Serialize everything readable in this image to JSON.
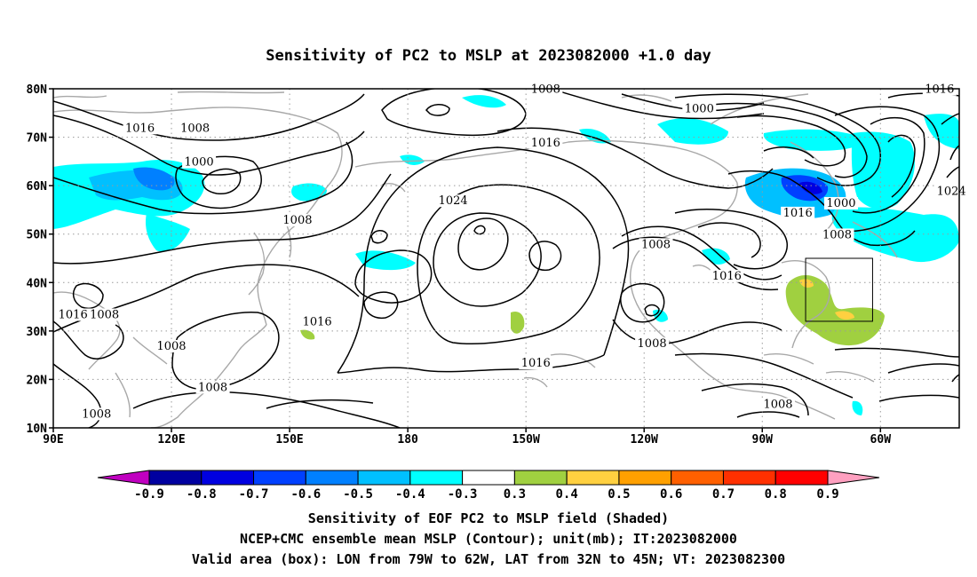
{
  "title": "Sensitivity of PC2 to MSLP at 2023082000 +1.0 day",
  "map": {
    "lat_labels": [
      "80N",
      "70N",
      "60N",
      "50N",
      "40N",
      "30N",
      "20N",
      "10N"
    ],
    "lat_values": [
      80,
      70,
      60,
      50,
      40,
      30,
      20,
      10
    ],
    "lon_labels": [
      "90E",
      "120E",
      "150E",
      "180",
      "150W",
      "120W",
      "90W",
      "60W"
    ],
    "lon_values": [
      90,
      120,
      150,
      180,
      210,
      240,
      270,
      300
    ],
    "lon_range": [
      90,
      320
    ],
    "lat_range": [
      10,
      80
    ],
    "grid": "dotted",
    "contour_labels": [
      {
        "text": "1008",
        "lon": 126,
        "lat": 71.5
      },
      {
        "text": "1016",
        "lon": 112,
        "lat": 71.5
      },
      {
        "text": "1000",
        "lon": 127,
        "lat": 64.5
      },
      {
        "text": "1008",
        "lon": 152,
        "lat": 52.5
      },
      {
        "text": "1024",
        "lon": 191.5,
        "lat": 56.5
      },
      {
        "text": "1016",
        "lon": 215,
        "lat": 68.5
      },
      {
        "text": "1008",
        "lon": 215,
        "lat": 79.5
      },
      {
        "text": "1000",
        "lon": 254,
        "lat": 75.5
      },
      {
        "text": "1016",
        "lon": 315,
        "lat": 79.5
      },
      {
        "text": "1016",
        "lon": 279,
        "lat": 54
      },
      {
        "text": "1000",
        "lon": 290,
        "lat": 56
      },
      {
        "text": "1008",
        "lon": 289,
        "lat": 49.5
      },
      {
        "text": "1024",
        "lon": 318,
        "lat": 58.5
      },
      {
        "text": "1008",
        "lon": 243,
        "lat": 47.5
      },
      {
        "text": "1016",
        "lon": 261,
        "lat": 41
      },
      {
        "text": "1008",
        "lon": 242,
        "lat": 27
      },
      {
        "text": "1016",
        "lon": 157,
        "lat": 31.5
      },
      {
        "text": "1016",
        "lon": 95,
        "lat": 33
      },
      {
        "text": "1008",
        "lon": 103,
        "lat": 33
      },
      {
        "text": "1008",
        "lon": 120,
        "lat": 26.5
      },
      {
        "text": "1008",
        "lon": 130.5,
        "lat": 18
      },
      {
        "text": "1008",
        "lon": 101,
        "lat": 12.5
      },
      {
        "text": "1016",
        "lon": 212.5,
        "lat": 23
      },
      {
        "text": "1008",
        "lon": 274,
        "lat": 14.5
      }
    ],
    "valid_box": {
      "lon_min": 281,
      "lon_max": 298,
      "lat_min": 32,
      "lat_max": 45
    }
  },
  "colorbar": {
    "labels": [
      "-0.9",
      "-0.8",
      "-0.7",
      "-0.6",
      "-0.5",
      "-0.4",
      "-0.3",
      "0.3",
      "0.4",
      "0.5",
      "0.6",
      "0.7",
      "0.8",
      "0.9"
    ],
    "colors": [
      "#c000c0",
      "#0000a0",
      "#0000e0",
      "#0040ff",
      "#0080ff",
      "#00c0ff",
      "#00ffff",
      "#ffffff",
      "#a0d040",
      "#ffd040",
      "#ffa000",
      "#ff6000",
      "#ff3000",
      "#ff0000",
      "#ffa0c0"
    ]
  },
  "caption": {
    "line1": "Sensitivity of EOF PC2 to MSLP field (Shaded)",
    "line2": "NCEP+CMC ensemble mean MSLP (Contour); unit(mb); IT:2023082000",
    "line3": "Valid area (box): LON from 79W to 62W, LAT from 32N to 45N; VT: 2023082300"
  }
}
